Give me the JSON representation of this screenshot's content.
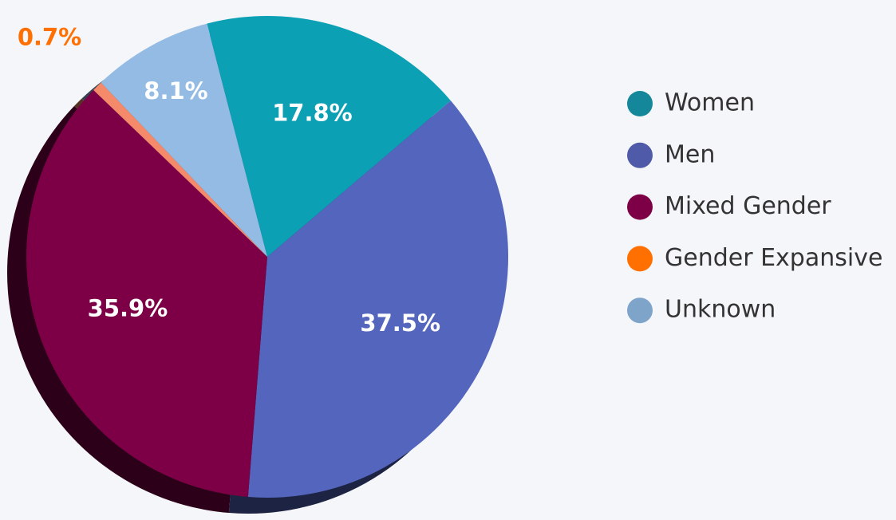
{
  "chart_data": {
    "type": "pie",
    "categories": [
      "Women",
      "Men",
      "Mixed Gender",
      "Gender Expansive",
      "Unknown"
    ],
    "values": [
      17.8,
      37.5,
      35.9,
      0.7,
      8.1
    ],
    "value_labels": [
      "17.8%",
      "37.5%",
      "35.9%",
      "0.7%",
      "8.1%"
    ],
    "colors": [
      "#0ba0b4",
      "#5465be",
      "#7d0047",
      "#f58a6b",
      "#93bbe4"
    ],
    "legend_colors": [
      "#14879a",
      "#4f5aa8",
      "#7d0047",
      "#ff7000",
      "#7ea4c9"
    ],
    "legend": "right"
  }
}
